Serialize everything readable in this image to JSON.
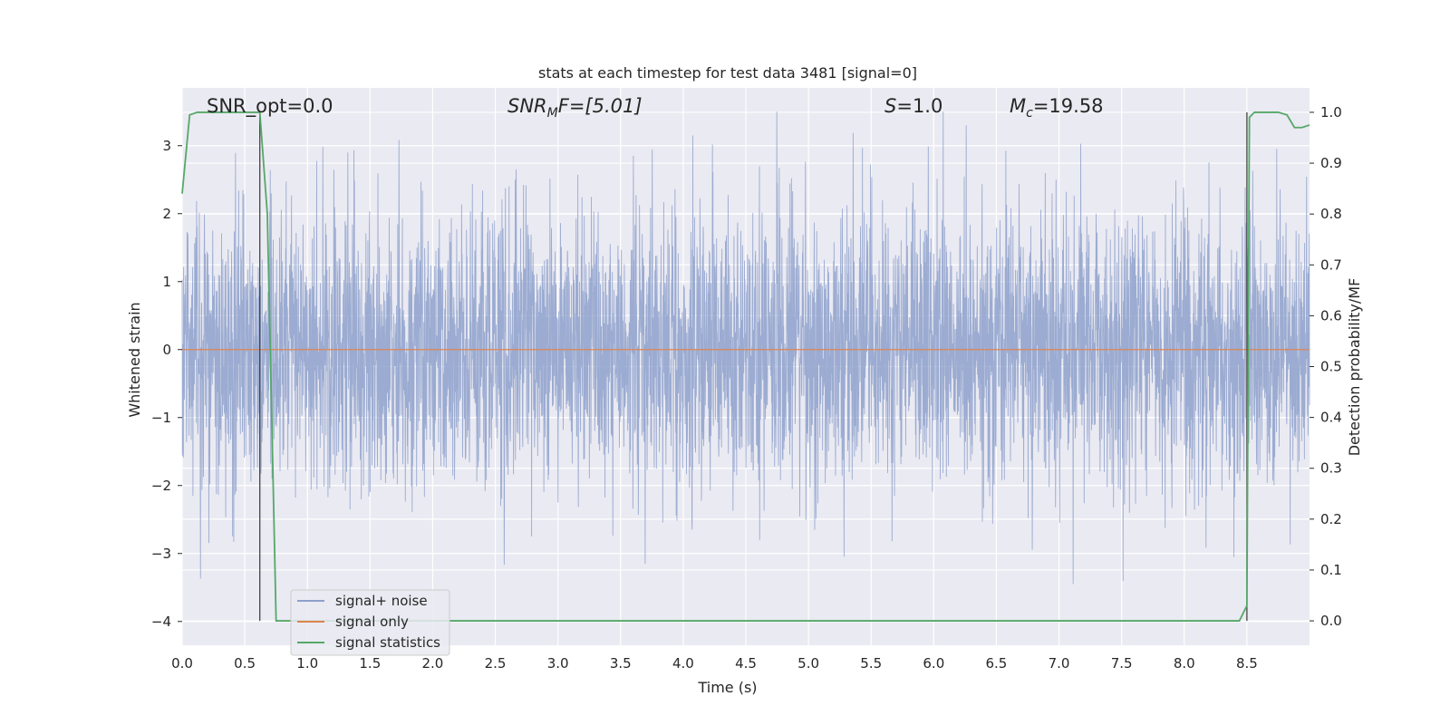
{
  "chart_data": {
    "type": "line",
    "title": "stats at each timestep for test data 3481 [signal=0]",
    "xlabel": "Time (s)",
    "ylabel": "Whitened strain",
    "ylabel_right": "Detection probability/MF",
    "xlim": [
      0.0,
      9.0
    ],
    "ylim": [
      -4.35,
      3.85
    ],
    "ylim_right": [
      -0.048,
      1.048
    ],
    "x_ticks": [
      "0.0",
      "0.5",
      "1.0",
      "1.5",
      "2.0",
      "2.5",
      "3.0",
      "3.5",
      "4.0",
      "4.5",
      "5.0",
      "5.5",
      "6.0",
      "6.5",
      "7.0",
      "7.5",
      "8.0",
      "8.5"
    ],
    "y_ticks": [
      "3",
      "2",
      "1",
      "0",
      "−1",
      "−2",
      "−3",
      "−4"
    ],
    "y_ticks_right": [
      "1.0",
      "0.9",
      "0.8",
      "0.7",
      "0.6",
      "0.5",
      "0.4",
      "0.3",
      "0.2",
      "0.1",
      "0.0"
    ],
    "grid": true,
    "legend_position": "lower-left",
    "annotations": {
      "snr_opt": "SNR_opt=0.0",
      "snr_mf_base": "SNR",
      "snr_mf_sub": "M",
      "snr_mf_rest": "F=[5.01]",
      "s_var": "S",
      "s_rest": "=1.0",
      "mc_base": "M",
      "mc_sub": "c",
      "mc_rest": "=19.58"
    },
    "series": [
      {
        "name": "signal+ noise",
        "color": "#8da0cb",
        "description_range": [
          -3.45,
          3.5
        ],
        "samples_per_second": 2048
      },
      {
        "name": "signal only",
        "color": "#dd8452",
        "values_constant": 0.0
      },
      {
        "name": "signal statistics",
        "color": "#55a868",
        "axis": "right",
        "x": [
          0.0,
          0.06,
          0.12,
          0.25,
          0.4,
          0.5,
          0.6,
          0.62,
          0.68,
          0.75,
          0.8,
          1.0,
          2.0,
          3.0,
          4.0,
          5.0,
          6.0,
          7.0,
          8.0,
          8.2,
          8.38,
          8.44,
          8.5,
          8.52,
          8.56,
          8.62,
          8.75,
          8.82,
          8.88,
          8.94,
          9.0
        ],
        "y": [
          0.84,
          0.995,
          1.0,
          1.0,
          1.0,
          1.0,
          1.0,
          1.0,
          0.8,
          0.0,
          0.0,
          0.0,
          0.0,
          0.0,
          0.0,
          0.0,
          0.0,
          0.0,
          0.0,
          0.0,
          0.0,
          0.0,
          0.03,
          0.99,
          1.0,
          1.0,
          1.0,
          0.995,
          0.97,
          0.97,
          0.975
        ]
      }
    ],
    "vertical_lines_x": [
      0.62,
      8.5
    ]
  }
}
